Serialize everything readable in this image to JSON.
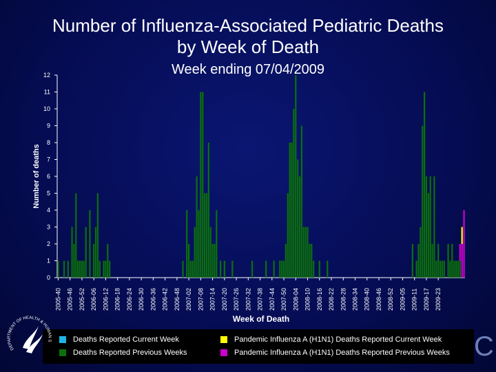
{
  "chart_data": {
    "type": "bar",
    "title": "Number of Influenza-Associated Pediatric Deaths by Week of Death",
    "subtitle": "Week ending 07/04/2009",
    "xlabel": "Week of Death",
    "ylabel": "Number of deaths",
    "ylim": [
      0,
      12
    ],
    "yticks": [
      "0",
      "1",
      "2",
      "3",
      "4",
      "5",
      "6",
      "7",
      "8",
      "9",
      "10",
      "11",
      "12"
    ],
    "xtick_labels": [
      "2005-40",
      "2005-46",
      "2005-52",
      "2006-06",
      "2006-12",
      "2006-18",
      "2006-24",
      "2006-30",
      "2006-36",
      "2006-42",
      "2006-48",
      "2007-02",
      "2007-08",
      "2007-14",
      "2007-20",
      "2007-26",
      "2007-32",
      "2007-38",
      "2007-44",
      "2007-50",
      "2008-04",
      "2008-10",
      "2008-16",
      "2008-22",
      "2008-28",
      "2008-34",
      "2008-40",
      "2008-46",
      "2008-52",
      "2009-05",
      "2009-11",
      "2009-17",
      "2009-23"
    ],
    "stacked": true,
    "series": [
      {
        "name": "Deaths Reported Current Week",
        "color": "#1eb4e6",
        "values": []
      },
      {
        "name": "Deaths Reported Previous Weeks",
        "color": "#0b6f0b",
        "values": [
          1,
          0,
          0,
          1,
          0,
          1,
          0,
          3,
          2,
          5,
          1,
          1,
          1,
          1,
          3,
          0,
          4,
          0,
          2,
          3,
          5,
          1,
          0,
          1,
          1,
          2,
          1,
          0,
          0,
          0,
          0,
          0,
          0,
          0,
          0,
          0,
          0,
          0,
          0,
          0,
          0,
          0,
          0,
          0,
          0,
          0,
          0,
          0,
          0,
          0,
          0,
          0,
          0,
          0,
          0,
          0,
          0,
          0,
          0,
          0,
          0,
          0,
          0,
          1,
          0,
          4,
          2,
          1,
          1,
          3,
          6,
          4,
          11,
          11,
          5,
          5,
          8,
          3,
          2,
          2,
          4,
          0,
          1,
          0,
          1,
          0,
          0,
          0,
          1,
          0,
          0,
          0,
          0,
          0,
          0,
          0,
          0,
          0,
          1,
          0,
          0,
          0,
          0,
          0,
          0,
          1,
          0,
          0,
          0,
          1,
          0,
          0,
          1,
          1,
          1,
          2,
          5,
          8,
          8,
          10,
          12,
          7,
          6,
          9,
          3,
          3,
          3,
          2,
          2,
          1,
          0,
          0,
          1,
          0,
          0,
          0,
          1,
          0,
          0,
          0,
          0,
          0,
          0,
          0,
          0,
          0,
          0,
          0,
          0,
          0,
          0,
          0,
          0,
          0,
          0,
          0,
          0,
          0,
          0,
          0,
          0,
          0,
          0,
          0,
          0,
          0,
          0,
          0,
          0,
          0,
          0,
          0,
          0,
          0,
          0,
          0,
          0,
          0,
          0,
          2,
          0,
          1,
          2,
          3,
          9,
          11,
          6,
          5,
          6,
          2,
          6,
          1,
          2,
          1,
          1,
          1,
          0,
          2,
          1,
          2,
          1,
          1,
          1,
          1,
          0,
          0
        ]
      },
      {
        "name": "Pandemic Influenza A (H1N1) Deaths Reported Current Week",
        "color": "#ffff00",
        "values": [
          0,
          0,
          0,
          0,
          0,
          0,
          0,
          0,
          0,
          0,
          0,
          0,
          0,
          0,
          0,
          0,
          0,
          0,
          0,
          0,
          0,
          0,
          0,
          0,
          0,
          0,
          0,
          0,
          0,
          0,
          0,
          0,
          0,
          0,
          0,
          0,
          0,
          0,
          0,
          0,
          0,
          0,
          0,
          0,
          0,
          0,
          0,
          0,
          0,
          0,
          0,
          0,
          0,
          0,
          0,
          0,
          0,
          0,
          0,
          0,
          0,
          0,
          0,
          0,
          0,
          0,
          0,
          0,
          0,
          0,
          0,
          0,
          0,
          0,
          0,
          0,
          0,
          0,
          0,
          0,
          0,
          0,
          0,
          0,
          0,
          0,
          0,
          0,
          0,
          0,
          0,
          0,
          0,
          0,
          0,
          0,
          0,
          0,
          0,
          0,
          0,
          0,
          0,
          0,
          0,
          0,
          0,
          0,
          0,
          0,
          0,
          0,
          0,
          0,
          0,
          0,
          0,
          0,
          0,
          0,
          0,
          0,
          0,
          0,
          0,
          0,
          0,
          0,
          0,
          0,
          0,
          0,
          0,
          0,
          0,
          0,
          0,
          0,
          0,
          0,
          0,
          0,
          0,
          0,
          0,
          0,
          0,
          0,
          0,
          0,
          0,
          0,
          0,
          0,
          0,
          0,
          0,
          0,
          0,
          0,
          0,
          0,
          0,
          0,
          0,
          0,
          0,
          0,
          0,
          0,
          0,
          0,
          0,
          0,
          0,
          0,
          0,
          0,
          0,
          0,
          0,
          0,
          0,
          0,
          0,
          0,
          0,
          0,
          0,
          0,
          0,
          0,
          0,
          0,
          0,
          0,
          0,
          0,
          0,
          0,
          0,
          0,
          0,
          0,
          1,
          0,
          3,
          0,
          1
        ]
      },
      {
        "name": "Pandemic Influenza A (H1N1) Deaths Reported Previous Weeks",
        "color": "#cc00cc",
        "values": [
          0,
          0,
          0,
          0,
          0,
          0,
          0,
          0,
          0,
          0,
          0,
          0,
          0,
          0,
          0,
          0,
          0,
          0,
          0,
          0,
          0,
          0,
          0,
          0,
          0,
          0,
          0,
          0,
          0,
          0,
          0,
          0,
          0,
          0,
          0,
          0,
          0,
          0,
          0,
          0,
          0,
          0,
          0,
          0,
          0,
          0,
          0,
          0,
          0,
          0,
          0,
          0,
          0,
          0,
          0,
          0,
          0,
          0,
          0,
          0,
          0,
          0,
          0,
          0,
          0,
          0,
          0,
          0,
          0,
          0,
          0,
          0,
          0,
          0,
          0,
          0,
          0,
          0,
          0,
          0,
          0,
          0,
          0,
          0,
          0,
          0,
          0,
          0,
          0,
          0,
          0,
          0,
          0,
          0,
          0,
          0,
          0,
          0,
          0,
          0,
          0,
          0,
          0,
          0,
          0,
          0,
          0,
          0,
          0,
          0,
          0,
          0,
          0,
          0,
          0,
          0,
          0,
          0,
          0,
          0,
          0,
          0,
          0,
          0,
          0,
          0,
          0,
          0,
          0,
          0,
          0,
          0,
          0,
          0,
          0,
          0,
          0,
          0,
          0,
          0,
          0,
          0,
          0,
          0,
          0,
          0,
          0,
          0,
          0,
          0,
          0,
          0,
          0,
          0,
          0,
          0,
          0,
          0,
          0,
          0,
          0,
          0,
          0,
          0,
          0,
          0,
          0,
          0,
          0,
          0,
          0,
          0,
          0,
          0,
          0,
          0,
          0,
          0,
          0,
          0,
          0,
          0,
          0,
          0,
          0,
          0,
          0,
          0,
          0,
          0,
          0,
          0,
          0,
          0,
          0,
          0,
          0,
          0,
          0,
          0,
          0,
          0,
          0,
          1,
          2,
          4,
          4,
          3,
          0
        ]
      }
    ],
    "legend_position": "bottom",
    "grid": false
  },
  "legend": {
    "current_week": "Deaths Reported Current Week",
    "previous_weeks": "Deaths Reported Previous Weeks",
    "h1n1_current": "Pandemic Influenza A (H1N1) Deaths Reported Current Week",
    "h1n1_previous": "Pandemic Influenza A (H1N1) Deaths Reported Previous Weeks"
  },
  "logo_text": "DEPARTMENT OF HEALTH & HUMAN SERVICES USA",
  "cdc_text": "C",
  "colors": {
    "background": "#050c52",
    "axis": "#ffffff"
  }
}
